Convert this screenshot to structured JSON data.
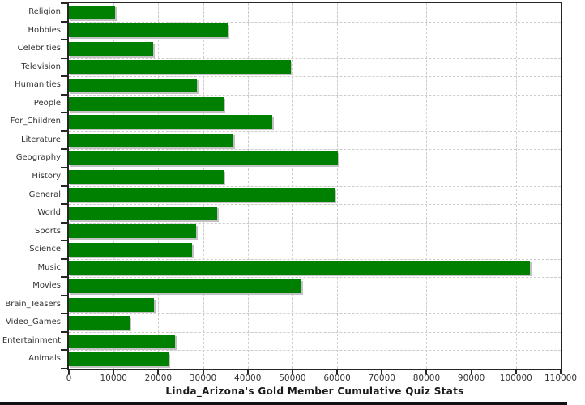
{
  "chart_data": {
    "type": "bar",
    "orientation": "horizontal",
    "title": "Linda_Arizona's Gold Member Cumulative Quiz Stats",
    "categories": [
      "Religion",
      "Hobbies",
      "Celebrities",
      "Television",
      "Humanities",
      "People",
      "For_Children",
      "Literature",
      "Geography",
      "History",
      "General",
      "World",
      "Sports",
      "Science",
      "Music",
      "Movies",
      "Brain_Teasers",
      "Video_Games",
      "Entertainment",
      "Animals"
    ],
    "values": [
      10400,
      35600,
      18800,
      49700,
      28700,
      34700,
      45500,
      36800,
      60100,
      34600,
      59400,
      33100,
      28400,
      27600,
      103200,
      52000,
      19000,
      13600,
      23800,
      22300
    ],
    "xlim": [
      0,
      110000
    ],
    "x_ticks": [
      0,
      10000,
      20000,
      30000,
      40000,
      50000,
      60000,
      70000,
      80000,
      90000,
      100000,
      110000
    ],
    "x_tick_labels": [
      "0",
      "10000",
      "20000",
      "30000",
      "40000",
      "50000",
      "60000",
      "70000",
      "80000",
      "90000",
      "100000",
      "110000"
    ],
    "grid": "dashed",
    "legend": "none",
    "colors": {
      "bar": "#008000",
      "bar_shadow": "#c2c2c2",
      "grid": "#cccccc",
      "axis": "#262626",
      "tick_label": "#333333",
      "title": "#1a1a1a",
      "background": "#ffffff",
      "bottom_strip": "#111111"
    }
  }
}
